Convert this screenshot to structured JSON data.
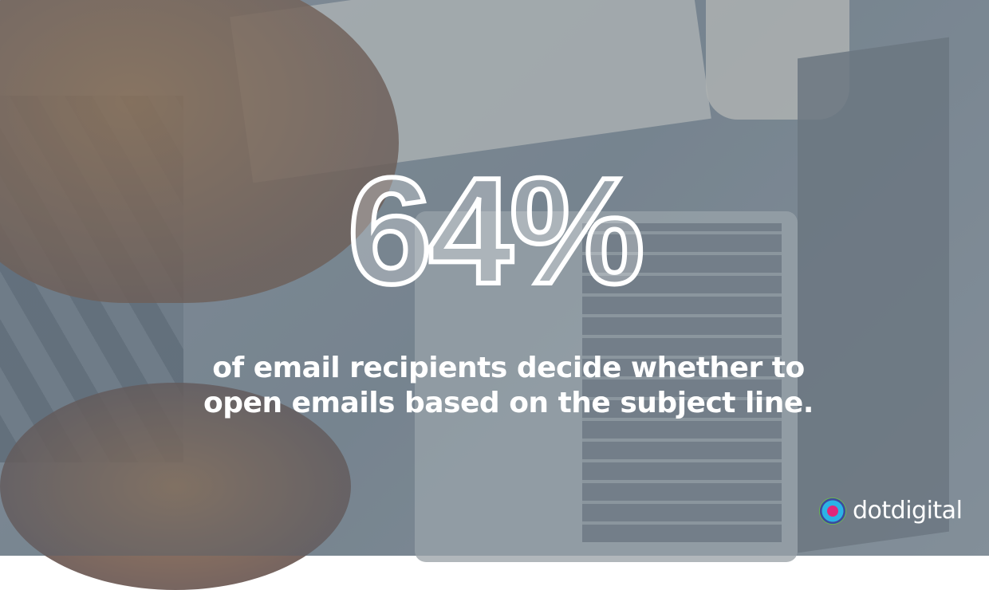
{
  "headline": {
    "stat": "64%"
  },
  "caption": {
    "line1": "of email recipients decide whether to",
    "line2": "open emails based on the subject line."
  },
  "brand": {
    "name": "dotdigital",
    "logo_icon": "dotdigital-circle-logo-icon",
    "colors": [
      "#e0287a",
      "#2bb3e6",
      "#3d4a9c",
      "#6cc04a"
    ]
  },
  "background": {
    "description_icon": "photo-laptop-typing"
  }
}
